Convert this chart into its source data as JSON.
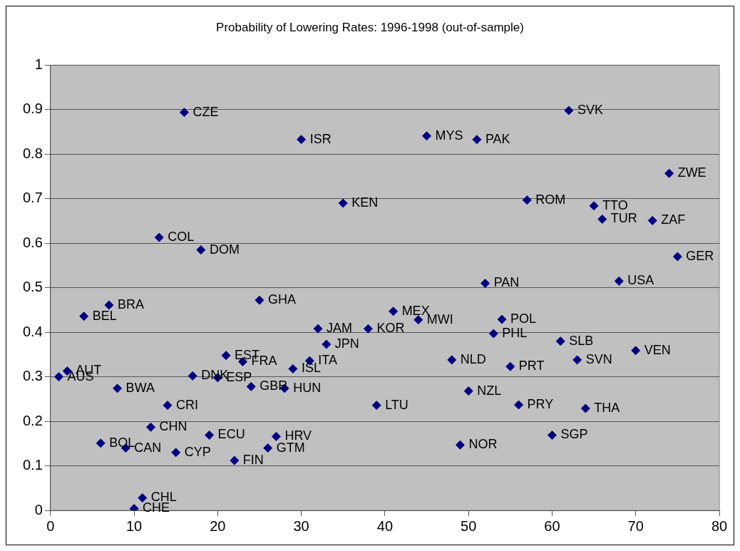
{
  "chart_data": {
    "type": "scatter",
    "title": "Probability of Lowering Rates: 1996-1998 (out-of-sample)",
    "x": [
      1,
      2,
      4,
      7,
      6,
      8,
      9,
      10,
      11,
      12,
      14,
      15,
      13,
      16,
      18,
      17,
      20,
      21,
      23,
      24,
      19,
      22,
      25,
      28,
      26,
      27,
      29,
      31,
      32,
      33,
      38,
      41,
      44,
      39,
      48,
      50,
      49,
      30,
      35,
      45,
      51,
      52,
      62,
      74,
      57,
      65,
      66,
      72,
      75,
      68,
      54,
      53,
      61,
      70,
      55,
      63,
      56,
      64,
      60
    ],
    "values": [
      0.3,
      0.313,
      0.436,
      0.461,
      0.151,
      0.274,
      0.14,
      0.004,
      0.028,
      0.187,
      0.236,
      0.13,
      0.613,
      0.894,
      0.585,
      0.302,
      0.298,
      0.348,
      0.334,
      0.278,
      0.169,
      0.112,
      0.472,
      0.274,
      0.14,
      0.166,
      0.318,
      0.336,
      0.408,
      0.373,
      0.408,
      0.447,
      0.428,
      0.236,
      0.338,
      0.268,
      0.147,
      0.833,
      0.69,
      0.841,
      0.833,
      0.51,
      0.898,
      0.757,
      0.697,
      0.684,
      0.654,
      0.651,
      0.57,
      0.515,
      0.429,
      0.397,
      0.38,
      0.359,
      0.323,
      0.338,
      0.237,
      0.229,
      0.169
    ],
    "value_labels": [
      "AUS",
      "AUT",
      "BEL",
      "BRA",
      "BOL",
      "BWA",
      "CAN",
      "CHE",
      "CHL",
      "CHN",
      "CRI",
      "CYP",
      "COL",
      "CZE",
      "DOM",
      "DNK",
      "ESP",
      "EST",
      "FRA",
      "GBR",
      "ECU",
      "FIN",
      "GHA",
      "HUN",
      "GTM",
      "HRV",
      "ISL",
      "ITA",
      "JAM",
      "JPN",
      "KOR",
      "MEX",
      "MWI",
      "LTU",
      "NLD",
      "NZL",
      "NOR",
      "ISR",
      "KEN",
      "MYS",
      "PAK",
      "PAN",
      "SVK",
      "ZWE",
      "ROM",
      "TTO",
      "TUR",
      "ZAF",
      "GER",
      "USA",
      "POL",
      "PHL",
      "SLB",
      "VEN",
      "PRT",
      "SVN",
      "PRY",
      "THA",
      "SGP"
    ],
    "color": "#000080",
    "marker": "diamond",
    "grid": "y",
    "legend": false,
    "xlim": [
      0,
      80
    ],
    "xticks": [
      0,
      10,
      20,
      30,
      40,
      50,
      60,
      70,
      80
    ],
    "ylim": [
      0,
      1
    ],
    "yticks": [
      0,
      0.1,
      0.2,
      0.3,
      0.4,
      0.5,
      0.6,
      0.7,
      0.8,
      0.9,
      1
    ]
  }
}
